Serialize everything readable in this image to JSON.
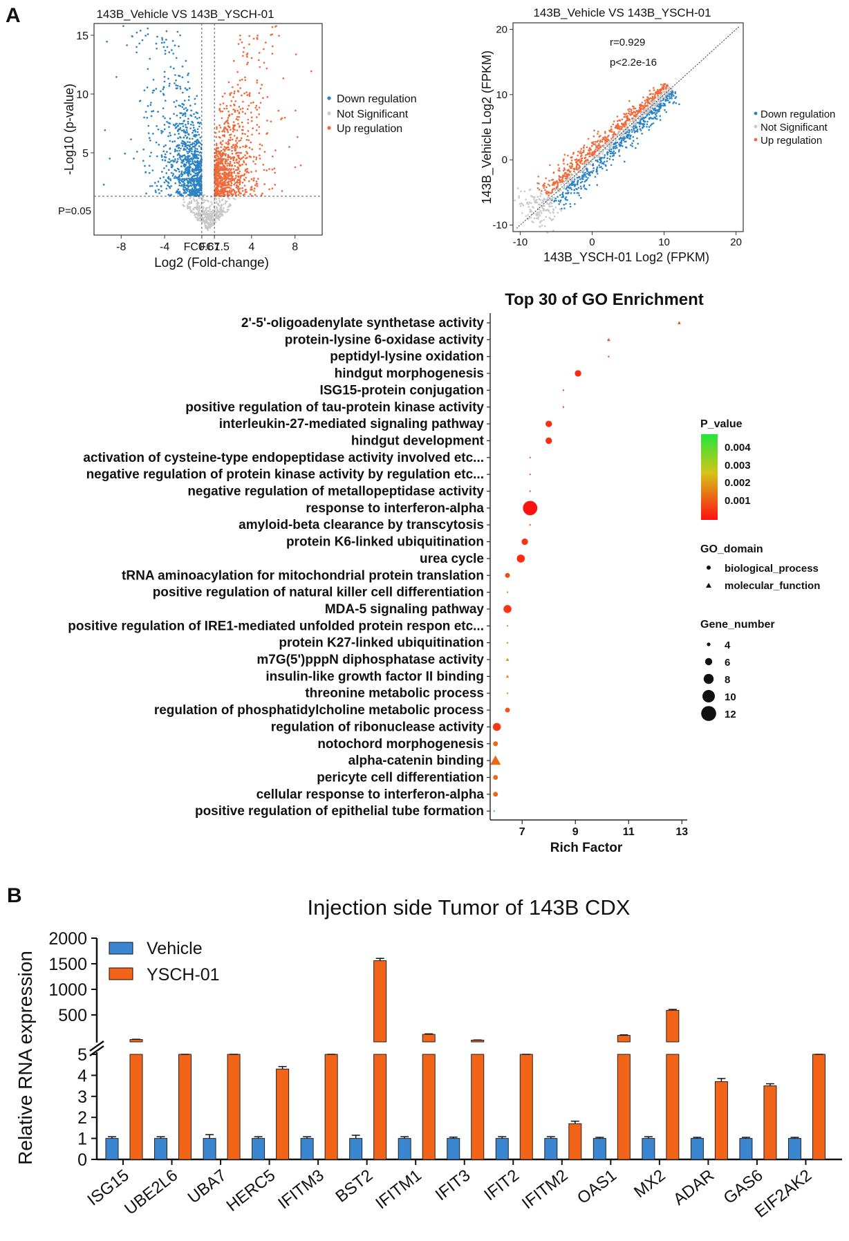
{
  "panels": {
    "a": "A",
    "b": "B"
  },
  "colors": {
    "down": "#2b83c6",
    "ns": "#c8c8c8",
    "up": "#ef6a3a",
    "vehicle": "#3a86d0",
    "ysch": "#f26418"
  },
  "volcano": {
    "title": "143B_Vehicle VS 143B_YSCH-01",
    "xlabel": "Log2 (Fold-change)",
    "ylabel": "-Log10 (p-value)",
    "xticks": [
      {
        "v": -8,
        "label": "-8"
      },
      {
        "v": -4,
        "label": "-4"
      },
      {
        "v": -0.58,
        "label": "FC0.67"
      },
      {
        "v": 0.58,
        "label": "FC1.5"
      },
      {
        "v": 4,
        "label": "4"
      },
      {
        "v": 8,
        "label": "8"
      }
    ],
    "yticks": [
      5,
      10,
      15
    ],
    "xlim": [
      -10.5,
      10.5
    ],
    "ylim": [
      -2,
      16
    ],
    "threshold_label": "P=0.05",
    "threshold_y": 1.3,
    "legend": [
      "Down regulation",
      "Not Significant",
      "Up regulation"
    ]
  },
  "scatter": {
    "title": "143B_Vehicle VS 143B_YSCH-01",
    "xlabel": "143B_YSCH-01 Log2 (FPKM)",
    "ylabel": "143B_Vehicle Log2 (FPKM)",
    "xticks": [
      -10,
      0,
      10,
      20
    ],
    "yticks": [
      -10,
      0,
      10,
      20
    ],
    "xlim": [
      -11,
      21
    ],
    "ylim": [
      -11,
      21
    ],
    "r_text": "r=0.929",
    "p_text": "p<2.2e-16",
    "legend": [
      "Down regulation",
      "Not Significant",
      "Up regulation"
    ]
  },
  "chart_data": [
    {
      "type": "scatter",
      "name": "volcano",
      "title": "143B_Vehicle VS 143B_YSCH-01",
      "xlabel": "Log2 (Fold-change)",
      "ylabel": "-Log10 (p-value)",
      "xlim": [
        -10.5,
        10.5
      ],
      "ylim": [
        -2,
        16
      ],
      "series": [
        {
          "name": "Down regulation",
          "values": "scattered points, x < -0.58, y > 1.3"
        },
        {
          "name": "Not Significant",
          "values": "points near origin"
        },
        {
          "name": "Up regulation",
          "values": "scattered points, x > 0.58, y > 1.3"
        }
      ]
    },
    {
      "type": "scatter",
      "name": "correlation",
      "title": "143B_Vehicle VS 143B_YSCH-01",
      "xlabel": "143B_YSCH-01 Log2 (FPKM)",
      "ylabel": "143B_Vehicle Log2 (FPKM)",
      "xlim": [
        -11,
        21
      ],
      "ylim": [
        -11,
        21
      ],
      "annotations": [
        "r=0.929",
        "p<2.2e-16"
      ]
    },
    {
      "type": "scatter",
      "name": "go_enrichment",
      "title": "Top 30 of GO Enrichment",
      "xlabel": "Rich Factor",
      "xticks": [
        7,
        9,
        11,
        13
      ],
      "xlim": [
        5.8,
        13.2
      ],
      "terms": [
        {
          "label": "2'-5'-oligoadenylate synthetase activity",
          "x": 12.9,
          "genes": 4,
          "p": 0.0012,
          "shape": "triangle"
        },
        {
          "label": "protein-lysine 6-oxidase activity",
          "x": 10.25,
          "genes": 4,
          "p": 0.0012,
          "shape": "triangle"
        },
        {
          "label": "peptidyl-lysine oxidation",
          "x": 10.25,
          "genes": 4,
          "p": 0.0012,
          "shape": "circle"
        },
        {
          "label": "hindgut morphogenesis",
          "x": 9.1,
          "genes": 7,
          "p": 0.0006,
          "shape": "circle"
        },
        {
          "label": "ISG15-protein conjugation",
          "x": 8.55,
          "genes": 4,
          "p": 0.0012,
          "shape": "circle"
        },
        {
          "label": "positive regulation of tau-protein kinase activity",
          "x": 8.55,
          "genes": 4,
          "p": 0.0012,
          "shape": "circle"
        },
        {
          "label": "interleukin-27-mediated signaling pathway",
          "x": 8.0,
          "genes": 7,
          "p": 0.0007,
          "shape": "circle"
        },
        {
          "label": "hindgut development",
          "x": 8.0,
          "genes": 7,
          "p": 0.0007,
          "shape": "circle"
        },
        {
          "label": "activation of cysteine-type endopeptidase activity involved  etc...",
          "x": 7.3,
          "genes": 4,
          "p": 0.0018,
          "shape": "circle"
        },
        {
          "label": "negative regulation of protein kinase activity by regulation etc...",
          "x": 7.3,
          "genes": 4,
          "p": 0.0018,
          "shape": "circle"
        },
        {
          "label": "negative regulation of metallopeptidase activity",
          "x": 7.3,
          "genes": 4,
          "p": 0.0018,
          "shape": "circle"
        },
        {
          "label": "response to interferon-alpha",
          "x": 7.3,
          "genes": 12,
          "p": 5e-05,
          "shape": "circle"
        },
        {
          "label": "amyloid-beta clearance by transcytosis",
          "x": 7.3,
          "genes": 4,
          "p": 0.0018,
          "shape": "circle"
        },
        {
          "label": "protein K6-linked ubiquitination",
          "x": 7.1,
          "genes": 7,
          "p": 0.0008,
          "shape": "circle"
        },
        {
          "label": "urea cycle",
          "x": 6.95,
          "genes": 8,
          "p": 0.0006,
          "shape": "circle"
        },
        {
          "label": "tRNA aminoacylation for mitochondrial protein translation",
          "x": 6.45,
          "genes": 6,
          "p": 0.0012,
          "shape": "circle"
        },
        {
          "label": "positive regulation of natural killer cell differentiation",
          "x": 6.45,
          "genes": 4,
          "p": 0.0025,
          "shape": "circle"
        },
        {
          "label": "MDA-5 signaling pathway",
          "x": 6.45,
          "genes": 8,
          "p": 0.0008,
          "shape": "circle"
        },
        {
          "label": "positive regulation of IRE1-mediated unfolded protein respon etc...",
          "x": 6.45,
          "genes": 4,
          "p": 0.0025,
          "shape": "circle"
        },
        {
          "label": "protein K27-linked ubiquitination",
          "x": 6.45,
          "genes": 4,
          "p": 0.0025,
          "shape": "circle"
        },
        {
          "label": "m7G(5')pppN diphosphatase activity",
          "x": 6.45,
          "genes": 4,
          "p": 0.0025,
          "shape": "triangle"
        },
        {
          "label": "insulin-like growth factor II binding",
          "x": 6.45,
          "genes": 4,
          "p": 0.0025,
          "shape": "triangle"
        },
        {
          "label": "threonine metabolic process",
          "x": 6.45,
          "genes": 4,
          "p": 0.0025,
          "shape": "circle"
        },
        {
          "label": "regulation of phosphatidylcholine metabolic process",
          "x": 6.45,
          "genes": 6,
          "p": 0.0014,
          "shape": "circle"
        },
        {
          "label": "regulation of ribonuclease activity",
          "x": 6.05,
          "genes": 8,
          "p": 0.0009,
          "shape": "circle"
        },
        {
          "label": "notochord morphogenesis",
          "x": 6.0,
          "genes": 6,
          "p": 0.0018,
          "shape": "circle"
        },
        {
          "label": "alpha-catenin binding",
          "x": 6.0,
          "genes": 8,
          "p": 0.0018,
          "shape": "triangle"
        },
        {
          "label": "pericyte cell differentiation",
          "x": 6.0,
          "genes": 6,
          "p": 0.0018,
          "shape": "circle"
        },
        {
          "label": "cellular response to interferon-alpha",
          "x": 6.0,
          "genes": 6,
          "p": 0.0018,
          "shape": "circle"
        },
        {
          "label": "positive regulation of epithelial tube formation",
          "x": 5.95,
          "genes": 4,
          "p": 0.0045,
          "shape": "circle"
        }
      ]
    },
    {
      "type": "bar",
      "name": "qpcr",
      "title": "Injection side Tumor of 143B CDX",
      "ylabel": "Relative RNA expression",
      "categories": [
        "ISG15",
        "UBE2L6",
        "UBA7",
        "HERC5",
        "IFITM3",
        "BST2",
        "IFITM1",
        "IFIT3",
        "IFIT2",
        "IFITM2",
        "OAS1",
        "MX2",
        "ADAR",
        "GAS6",
        "EIF2AK2"
      ],
      "series": [
        {
          "name": "Vehicle",
          "values": [
            1,
            1,
            1,
            1,
            1,
            1,
            1,
            1,
            1,
            1,
            1,
            1,
            1,
            1,
            1
          ],
          "errors": [
            0.08,
            0.08,
            0.18,
            0.08,
            0.08,
            0.15,
            0.08,
            0.06,
            0.08,
            0.08,
            0.05,
            0.08,
            0.05,
            0.05,
            0.05
          ]
        },
        {
          "name": "YSCH-01",
          "values": [
            20,
            5,
            5,
            4.3,
            5,
            1560,
            120,
            8,
            5,
            1.7,
            100,
            590,
            3.7,
            3.5,
            5
          ],
          "errors": [
            4,
            1,
            1,
            0.12,
            1,
            45,
            10,
            2,
            1,
            0.12,
            10,
            18,
            0.15,
            0.1,
            1
          ]
        }
      ],
      "yticks_upper": [
        500,
        1000,
        1500,
        2000
      ],
      "yticks_lower": [
        0,
        1,
        2,
        3,
        4,
        5
      ],
      "ylim_lower": [
        0,
        5
      ],
      "ylim_upper": [
        0,
        2000
      ]
    }
  ],
  "go": {
    "title": "Top 30 of GO Enrichment",
    "xlabel": "Rich Factor",
    "xticks": [
      7,
      9,
      11,
      13
    ],
    "pvalue_legend": {
      "title": "P_value",
      "ticks": [
        "0.004",
        "0.003",
        "0.002",
        "0.001"
      ]
    },
    "domain_legend": {
      "title": "GO_domain",
      "items": [
        "biological_process",
        "molecular_function"
      ]
    },
    "gene_legend": {
      "title": "Gene_number",
      "items": [
        "4",
        "6",
        "8",
        "10",
        "12"
      ]
    }
  },
  "bar": {
    "title": "Injection side Tumor of 143B CDX",
    "ylabel": "Relative RNA expression",
    "legend": [
      "Vehicle",
      "YSCH-01"
    ],
    "yticks_upper": [
      "500",
      "1000",
      "1500",
      "2000"
    ],
    "yticks_lower": [
      "0",
      "1",
      "2",
      "3",
      "4",
      "5"
    ]
  }
}
